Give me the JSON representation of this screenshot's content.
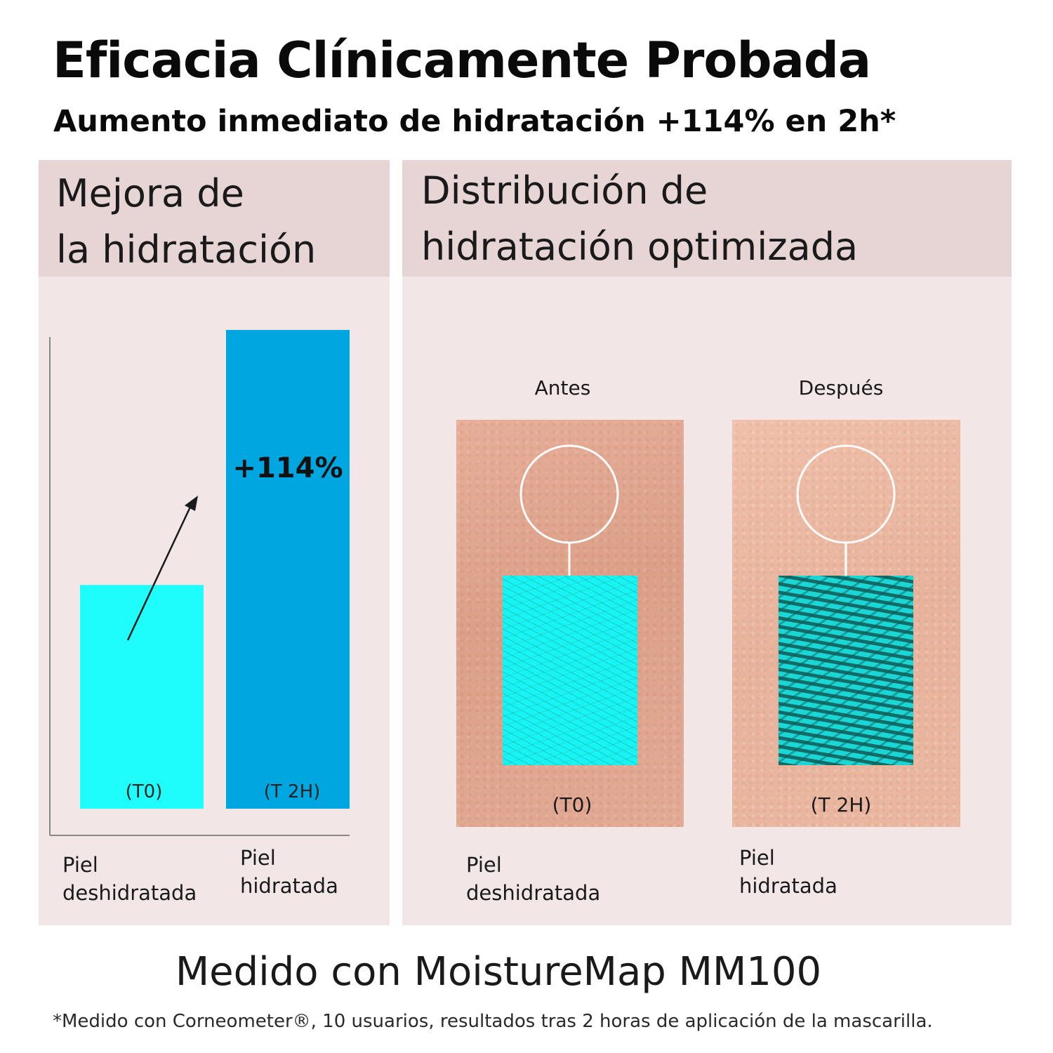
{
  "header": {
    "title": "Eficacia Clínicamente Probada",
    "subtitle": "Aumento inmediato de hidratación +114% en 2h*"
  },
  "left_panel": {
    "heading_line1": "Mejora de",
    "heading_line2": "la hidratación"
  },
  "right_panel": {
    "heading_line1": "Distribución de",
    "heading_line2": "hidratación optimizada",
    "before_label": "Antes",
    "after_label": "Después",
    "before_caption": "(T0)",
    "after_caption": "(T 2H)",
    "before_cat_line1": "Piel",
    "before_cat_line2": "deshidratada",
    "after_cat_line1": "Piel",
    "after_cat_line2": "hidratada"
  },
  "chart_data": {
    "type": "bar",
    "categories": [
      "Piel deshidratada",
      "Piel hidratada"
    ],
    "bar_labels": [
      "(T0)",
      "(T 2H)"
    ],
    "values": [
      100,
      214
    ],
    "annotation": "+114%",
    "colors": [
      "#1efcfb",
      "#00a6e0"
    ],
    "category_lines": [
      [
        "Piel",
        "deshidratada"
      ],
      [
        "Piel",
        "hidratada"
      ]
    ],
    "title": "",
    "xlabel": "",
    "ylabel": ""
  },
  "footer": {
    "measured": "Medido con MoistureMap MM100",
    "footnote": "*Medido con Corneometer®, 10 usuarios, resultados tras 2 horas de aplicación de la mascarilla."
  },
  "colors": {
    "panel_bg": "#f3e6e7",
    "panel_header_bg": "#e7d4d5",
    "cyan": "#1efcfb",
    "blue": "#00a6e0"
  }
}
